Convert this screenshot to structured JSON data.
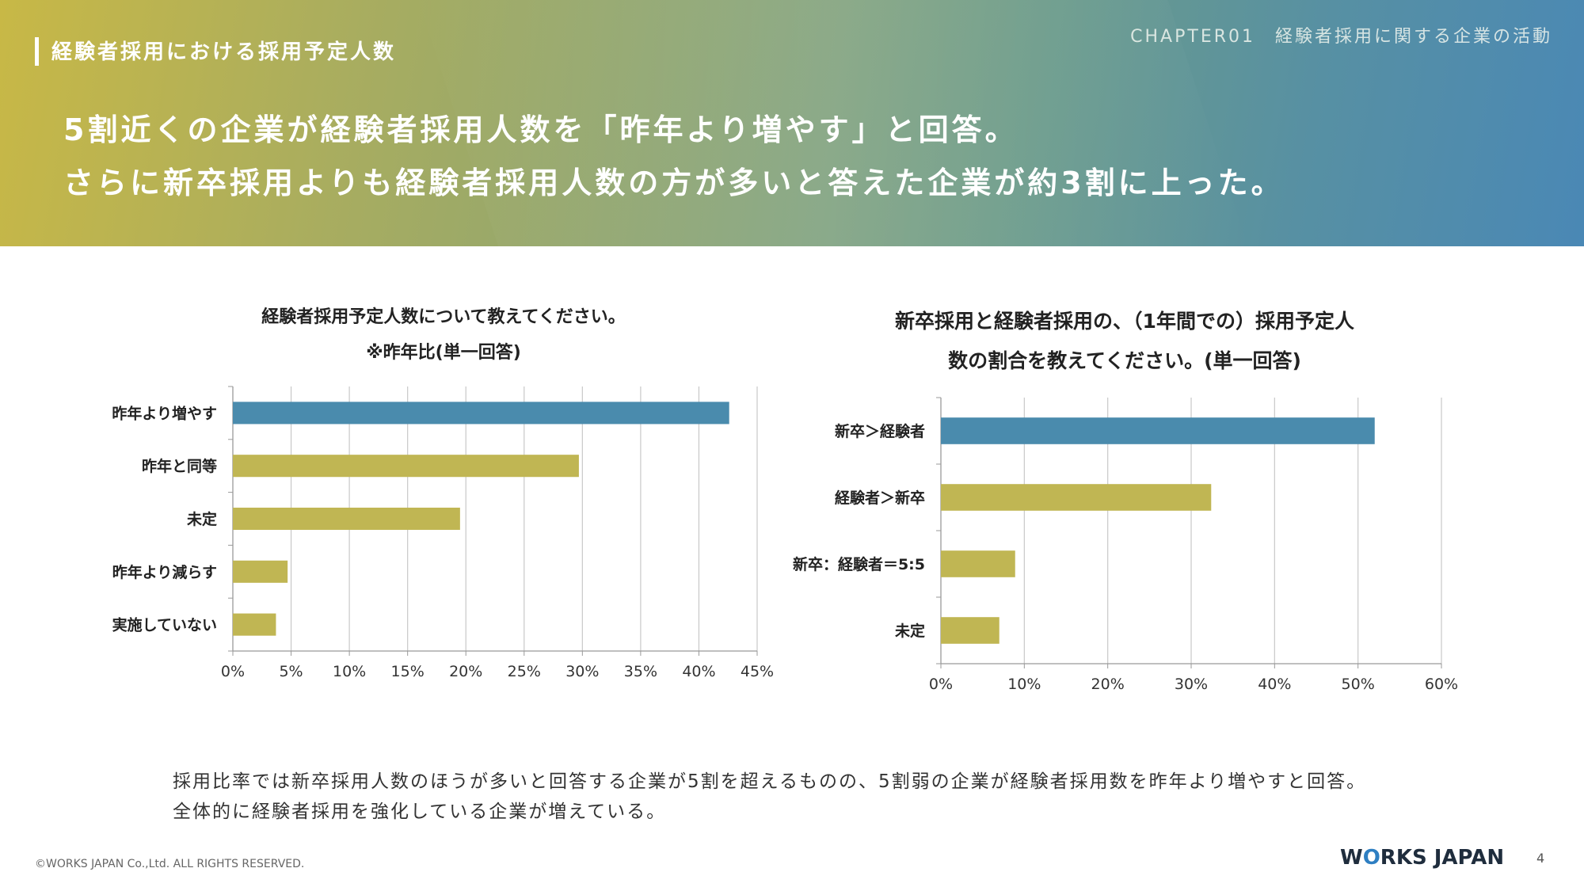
{
  "header": {
    "section_title": "経験者採用における採用予定人数",
    "chapter": "CHAPTER01　経験者採用に関する企業の活動",
    "headline_1": "5割近くの企業が経験者採用人数を「昨年より増やす」と回答。",
    "headline_2": "さらに新卒採用よりも経験者採用人数の方が多いと答えた企業が約3割に上った。"
  },
  "chart_data": [
    {
      "type": "bar",
      "orientation": "horizontal",
      "title_line1": "経験者採用予定人数について教えてください。",
      "title_line2": "※昨年比(単一回答)",
      "categories": [
        "昨年より増やす",
        "昨年と同等",
        "未定",
        "昨年より減らす",
        "実施していない"
      ],
      "values": [
        42.6,
        29.7,
        19.5,
        4.7,
        3.7
      ],
      "bar_colors": [
        "#4a8bad",
        "#c0b653",
        "#c0b653",
        "#c0b653",
        "#c0b653"
      ],
      "xlim": [
        0,
        45
      ],
      "x_ticks": [
        "0%",
        "5%",
        "10%",
        "15%",
        "20%",
        "25%",
        "30%",
        "35%",
        "40%",
        "45%"
      ],
      "grid": true
    },
    {
      "type": "bar",
      "orientation": "horizontal",
      "title_line1": "新卒採用と経験者採用の、（1年間での）採用予定人",
      "title_line2": "数の割合を教えてください。(単一回答)",
      "categories": [
        "新卒＞経験者",
        "経験者＞新卒",
        "新卒：経験者＝5:5",
        "未定"
      ],
      "values": [
        52.0,
        32.4,
        8.9,
        7.0
      ],
      "bar_colors": [
        "#4a8bad",
        "#c0b653",
        "#c0b653",
        "#c0b653"
      ],
      "xlim": [
        0,
        60
      ],
      "x_ticks": [
        "0%",
        "10%",
        "20%",
        "30%",
        "40%",
        "50%",
        "60%"
      ],
      "grid": true
    }
  ],
  "summary": {
    "line_1": "採用比率では新卒採用人数のほうが多いと回答する企業が5割を超えるものの、5割弱の企業が経験者採用数を昨年より増やすと回答。",
    "line_2": "全体的に経験者採用を強化している企業が増えている。"
  },
  "footer": {
    "copyright": "©WORKS JAPAN Co.,Ltd. ALL RIGHTS RESERVED.",
    "logo_w": "W",
    "logo_o": "O",
    "logo_rest": "RKS JAPAN",
    "page_number": "4"
  }
}
